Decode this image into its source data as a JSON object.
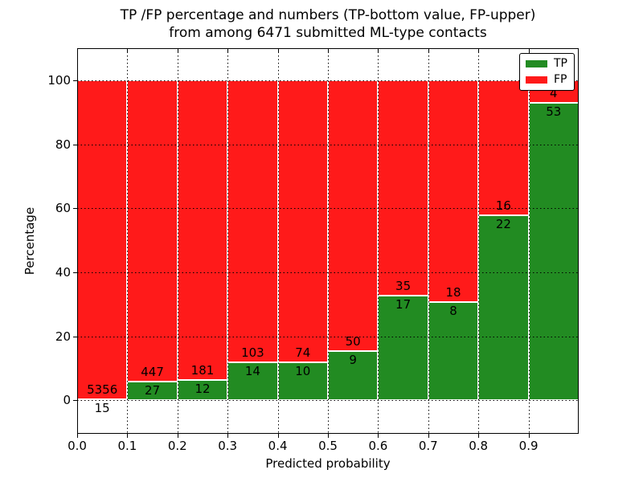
{
  "figure": {
    "title_line1": "TP /FP percentage and numbers (TP-bottom value, FP-upper)",
    "title_line2": "from among 6471 submitted ML-type contacts"
  },
  "axes": {
    "xlabel": "Predicted probability",
    "ylabel": "Percentage",
    "x_tick_labels": [
      "0.0",
      "0.1",
      "0.2",
      "0.3",
      "0.4",
      "0.5",
      "0.6",
      "0.7",
      "0.8",
      "0.9"
    ],
    "y_tick_labels": [
      "0",
      "20",
      "40",
      "60",
      "80",
      "100"
    ]
  },
  "legend": {
    "position": "upper right",
    "items": [
      {
        "label": "TP",
        "color": "#228B22"
      },
      {
        "label": "FP",
        "color": "#FF1A1A"
      }
    ]
  },
  "chart_data": {
    "type": "bar",
    "stacked": true,
    "normalization": "each bin scaled to 100%; numeric labels show raw counts (TP below boundary, FP above boundary)",
    "title": "TP /FP percentage and numbers (TP-bottom value, FP-upper) from among 6471 submitted ML-type contacts",
    "xlabel": "Predicted probability",
    "ylabel": "Percentage",
    "total_contacts": 6471,
    "bin_edges": [
      0.0,
      0.1,
      0.2,
      0.3,
      0.4,
      0.5,
      0.6,
      0.7,
      0.8,
      0.9,
      1.0
    ],
    "categories": [
      "0.0-0.1",
      "0.1-0.2",
      "0.2-0.3",
      "0.3-0.4",
      "0.4-0.5",
      "0.5-0.6",
      "0.6-0.7",
      "0.7-0.8",
      "0.8-0.9",
      "0.9-1.0"
    ],
    "series": [
      {
        "name": "TP",
        "color": "#228B22",
        "counts": [
          15,
          27,
          12,
          14,
          10,
          9,
          17,
          8,
          22,
          53
        ]
      },
      {
        "name": "FP",
        "color": "#FF1A1A",
        "counts": [
          5356,
          447,
          181,
          103,
          74,
          50,
          35,
          18,
          16,
          4
        ]
      }
    ],
    "tp_percent_of_bin": [
      0.28,
      5.7,
      6.22,
      11.97,
      11.9,
      15.25,
      32.69,
      30.77,
      57.89,
      92.98
    ],
    "xlim": [
      0.0,
      1.0
    ],
    "ylim": [
      -10.5,
      110
    ],
    "x_gridlines": [
      0.1,
      0.2,
      0.3,
      0.4,
      0.5,
      0.6,
      0.7,
      0.8,
      0.9
    ],
    "y_gridlines": [
      0,
      20,
      40,
      60,
      80,
      100
    ],
    "grid_style": "dotted",
    "bar_edge_color": "#ffffff",
    "legend_position": "upper right"
  }
}
